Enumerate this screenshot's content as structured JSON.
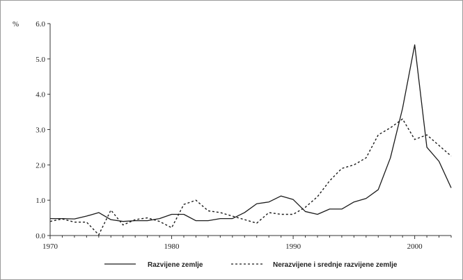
{
  "chart_data": {
    "type": "line",
    "title": "",
    "xlabel": "",
    "ylabel": "%",
    "xlim": [
      1970,
      2003
    ],
    "ylim": [
      0,
      6
    ],
    "x_ticks": [
      1970,
      1980,
      1990,
      2000
    ],
    "y_ticks": [
      "0.0",
      "1.0",
      "2.0",
      "3.0",
      "4.0",
      "5.0",
      "6.0"
    ],
    "grid": false,
    "legend_position": "bottom",
    "x": [
      1970,
      1971,
      1972,
      1973,
      1974,
      1975,
      1976,
      1977,
      1978,
      1979,
      1980,
      1981,
      1982,
      1983,
      1984,
      1985,
      1986,
      1987,
      1988,
      1989,
      1990,
      1991,
      1992,
      1993,
      1994,
      1995,
      1996,
      1997,
      1998,
      1999,
      2000,
      2001,
      2002,
      2003
    ],
    "series": [
      {
        "name": "Razvijene zemlje",
        "style": "solid",
        "values": [
          0.48,
          0.48,
          0.47,
          0.55,
          0.65,
          0.45,
          0.4,
          0.42,
          0.42,
          0.48,
          0.6,
          0.6,
          0.42,
          0.42,
          0.48,
          0.48,
          0.65,
          0.9,
          0.95,
          1.12,
          1.02,
          0.68,
          0.6,
          0.75,
          0.75,
          0.95,
          1.05,
          1.3,
          2.2,
          3.6,
          5.4,
          2.5,
          2.1,
          1.35
        ]
      },
      {
        "name": "Nerazvijene i srednje razvijene zemlje",
        "style": "dashed",
        "values": [
          0.4,
          0.47,
          0.38,
          0.38,
          0.02,
          0.72,
          0.3,
          0.45,
          0.5,
          0.4,
          0.22,
          0.88,
          1.0,
          0.7,
          0.65,
          0.55,
          0.45,
          0.35,
          0.65,
          0.6,
          0.6,
          0.8,
          1.1,
          1.55,
          1.9,
          2.0,
          2.2,
          2.85,
          3.05,
          3.3,
          2.72,
          2.85,
          2.55,
          2.25
        ]
      }
    ]
  }
}
